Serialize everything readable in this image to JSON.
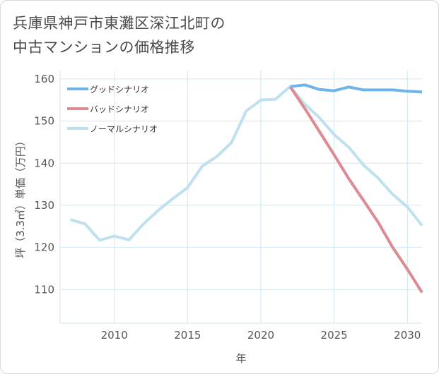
{
  "title_line1": "兵庫県神戸市東灘区深江北町の",
  "title_line2": "中古マンションの価格推移",
  "chart_data": {
    "type": "line",
    "xlabel": "年",
    "ylabel": "坪（3.3㎡）単価（万円）",
    "xlim": [
      2006.3,
      2031
    ],
    "ylim": [
      102,
      162
    ],
    "xticks": [
      2010,
      2015,
      2020,
      2025,
      2030
    ],
    "yticks": [
      110,
      120,
      130,
      140,
      150,
      160
    ],
    "grid": true,
    "legend_position": "top-left",
    "series": [
      {
        "name": "グッドシナリオ",
        "color": "#6cb4ea",
        "x": [
          2022,
          2023,
          2024,
          2025,
          2026,
          2027,
          2028,
          2029,
          2030,
          2031
        ],
        "values": [
          158.2,
          158.6,
          157.5,
          157.2,
          158.1,
          157.4,
          157.4,
          157.4,
          157.1,
          156.9
        ]
      },
      {
        "name": "バッドシナリオ",
        "color": "#dd8a90",
        "x": [
          2022,
          2023,
          2024,
          2025,
          2026,
          2027,
          2028,
          2029,
          2030,
          2031
        ],
        "values": [
          158.2,
          153.0,
          147.5,
          142.0,
          136.3,
          131.2,
          126.0,
          120.0,
          114.8,
          109.3
        ]
      },
      {
        "name": "ノーマルシナリオ",
        "color": "#bfe0ee",
        "x": [
          2007,
          2008,
          2009,
          2010,
          2011,
          2012,
          2013,
          2014,
          2015,
          2016,
          2017,
          2018,
          2019,
          2020,
          2021,
          2022,
          2023,
          2024,
          2025,
          2026,
          2027,
          2028,
          2029,
          2030,
          2031
        ],
        "values": [
          126.6,
          125.6,
          121.7,
          122.7,
          121.8,
          125.6,
          128.8,
          131.6,
          134.2,
          139.3,
          141.6,
          144.9,
          152.4,
          155.0,
          155.2,
          158.2,
          154.0,
          150.8,
          146.8,
          143.8,
          139.6,
          136.5,
          132.6,
          129.6,
          125.2
        ]
      }
    ]
  }
}
